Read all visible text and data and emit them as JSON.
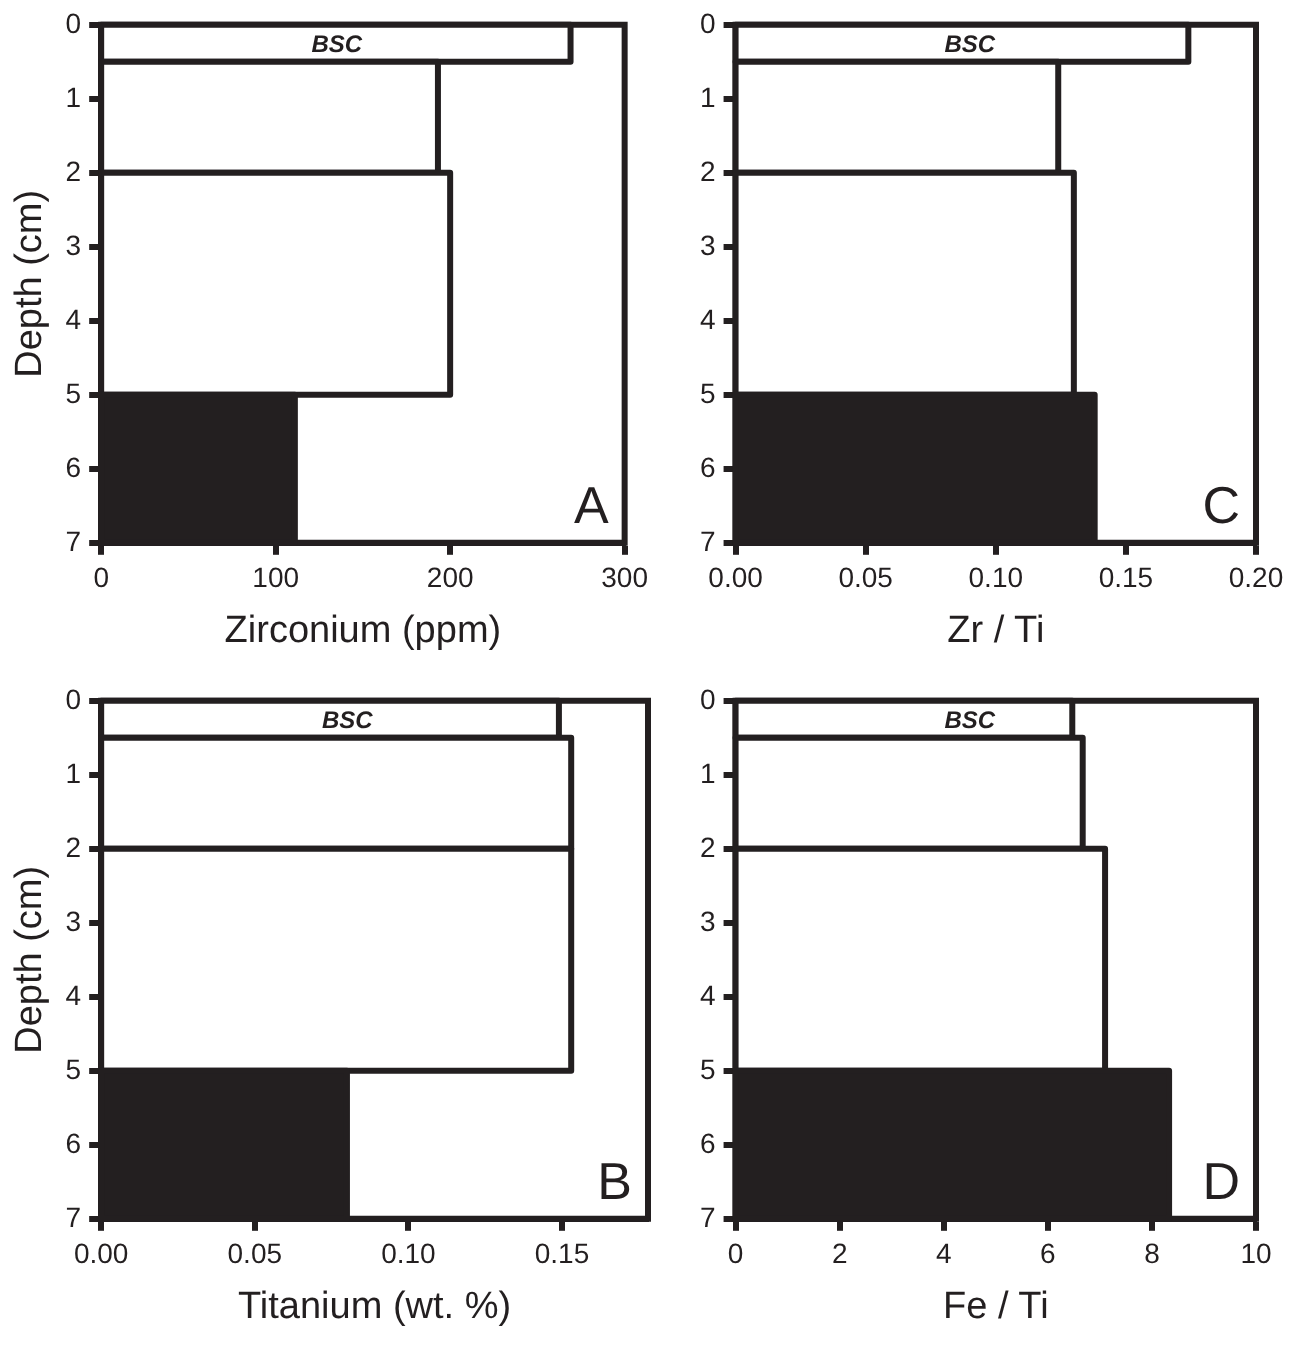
{
  "chart_data": [
    {
      "type": "histogram",
      "orientation": "horizontal",
      "bins": [
        0,
        0.5,
        2,
        5,
        7
      ],
      "values": [
        269,
        193,
        200,
        111
      ],
      "colors": [
        "#ffffff",
        "#ffffff",
        "#ffffff",
        "#231f20"
      ],
      "xlabel": "Zirconium (ppm)",
      "ylabel": "Depth (cm)",
      "xlim": [
        0,
        300
      ],
      "xticks": [
        0,
        100,
        200,
        300
      ],
      "ylim": [
        7,
        0
      ],
      "yticks": [
        0,
        1,
        2,
        3,
        4,
        5,
        6,
        7
      ],
      "annotations": [
        "BSC",
        "A"
      ]
    },
    {
      "type": "histogram",
      "orientation": "horizontal",
      "bins": [
        0,
        0.5,
        2,
        5,
        7
      ],
      "values": [
        0.174,
        0.124,
        0.13,
        0.138
      ],
      "colors": [
        "#ffffff",
        "#ffffff",
        "#ffffff",
        "#231f20"
      ],
      "xlabel": "Zr / Ti",
      "xlim": [
        0,
        0.2
      ],
      "xticks": [
        {
          "value": 0,
          "label": "0.00"
        },
        0.05,
        {
          "value": 0.1,
          "label": "0.10"
        },
        0.15,
        {
          "value": 0.2,
          "label": "0.20"
        }
      ],
      "ylim": [
        7,
        0
      ],
      "yticks": [
        0,
        1,
        2,
        3,
        4,
        5,
        6,
        7
      ],
      "annotations": [
        "BSC",
        "C"
      ]
    },
    {
      "type": "histogram",
      "orientation": "horizontal",
      "bins": [
        0,
        0.5,
        2,
        5,
        7
      ],
      "values": [
        0.149,
        0.153,
        0.153,
        0.08
      ],
      "colors": [
        "#ffffff",
        "#ffffff",
        "#ffffff",
        "#231f20"
      ],
      "xlabel": "Titanium (wt. %)",
      "ylabel": "Depth (cm)",
      "xlim": [
        0,
        0.178
      ],
      "xticks": [
        {
          "value": 0,
          "label": "0.00"
        },
        0.05,
        {
          "value": 0.1,
          "label": "0.10"
        },
        0.15
      ],
      "ylim": [
        7,
        0
      ],
      "yticks": [
        0,
        1,
        2,
        3,
        4,
        5,
        6,
        7
      ],
      "annotations": [
        "BSC",
        "B"
      ]
    },
    {
      "type": "histogram",
      "orientation": "horizontal",
      "bins": [
        0,
        0.5,
        2,
        5,
        7
      ],
      "values": [
        6.47,
        6.67,
        7.1,
        8.33
      ],
      "colors": [
        "#ffffff",
        "#ffffff",
        "#ffffff",
        "#231f20"
      ],
      "xlabel": "Fe / Ti",
      "xlim": [
        0,
        10
      ],
      "xticks": [
        0,
        2,
        4,
        6,
        8,
        10
      ],
      "ylim": [
        7,
        0
      ],
      "yticks": [
        0,
        1,
        2,
        3,
        4,
        5,
        6,
        7
      ],
      "annotations": [
        "BSC",
        "D"
      ]
    }
  ]
}
